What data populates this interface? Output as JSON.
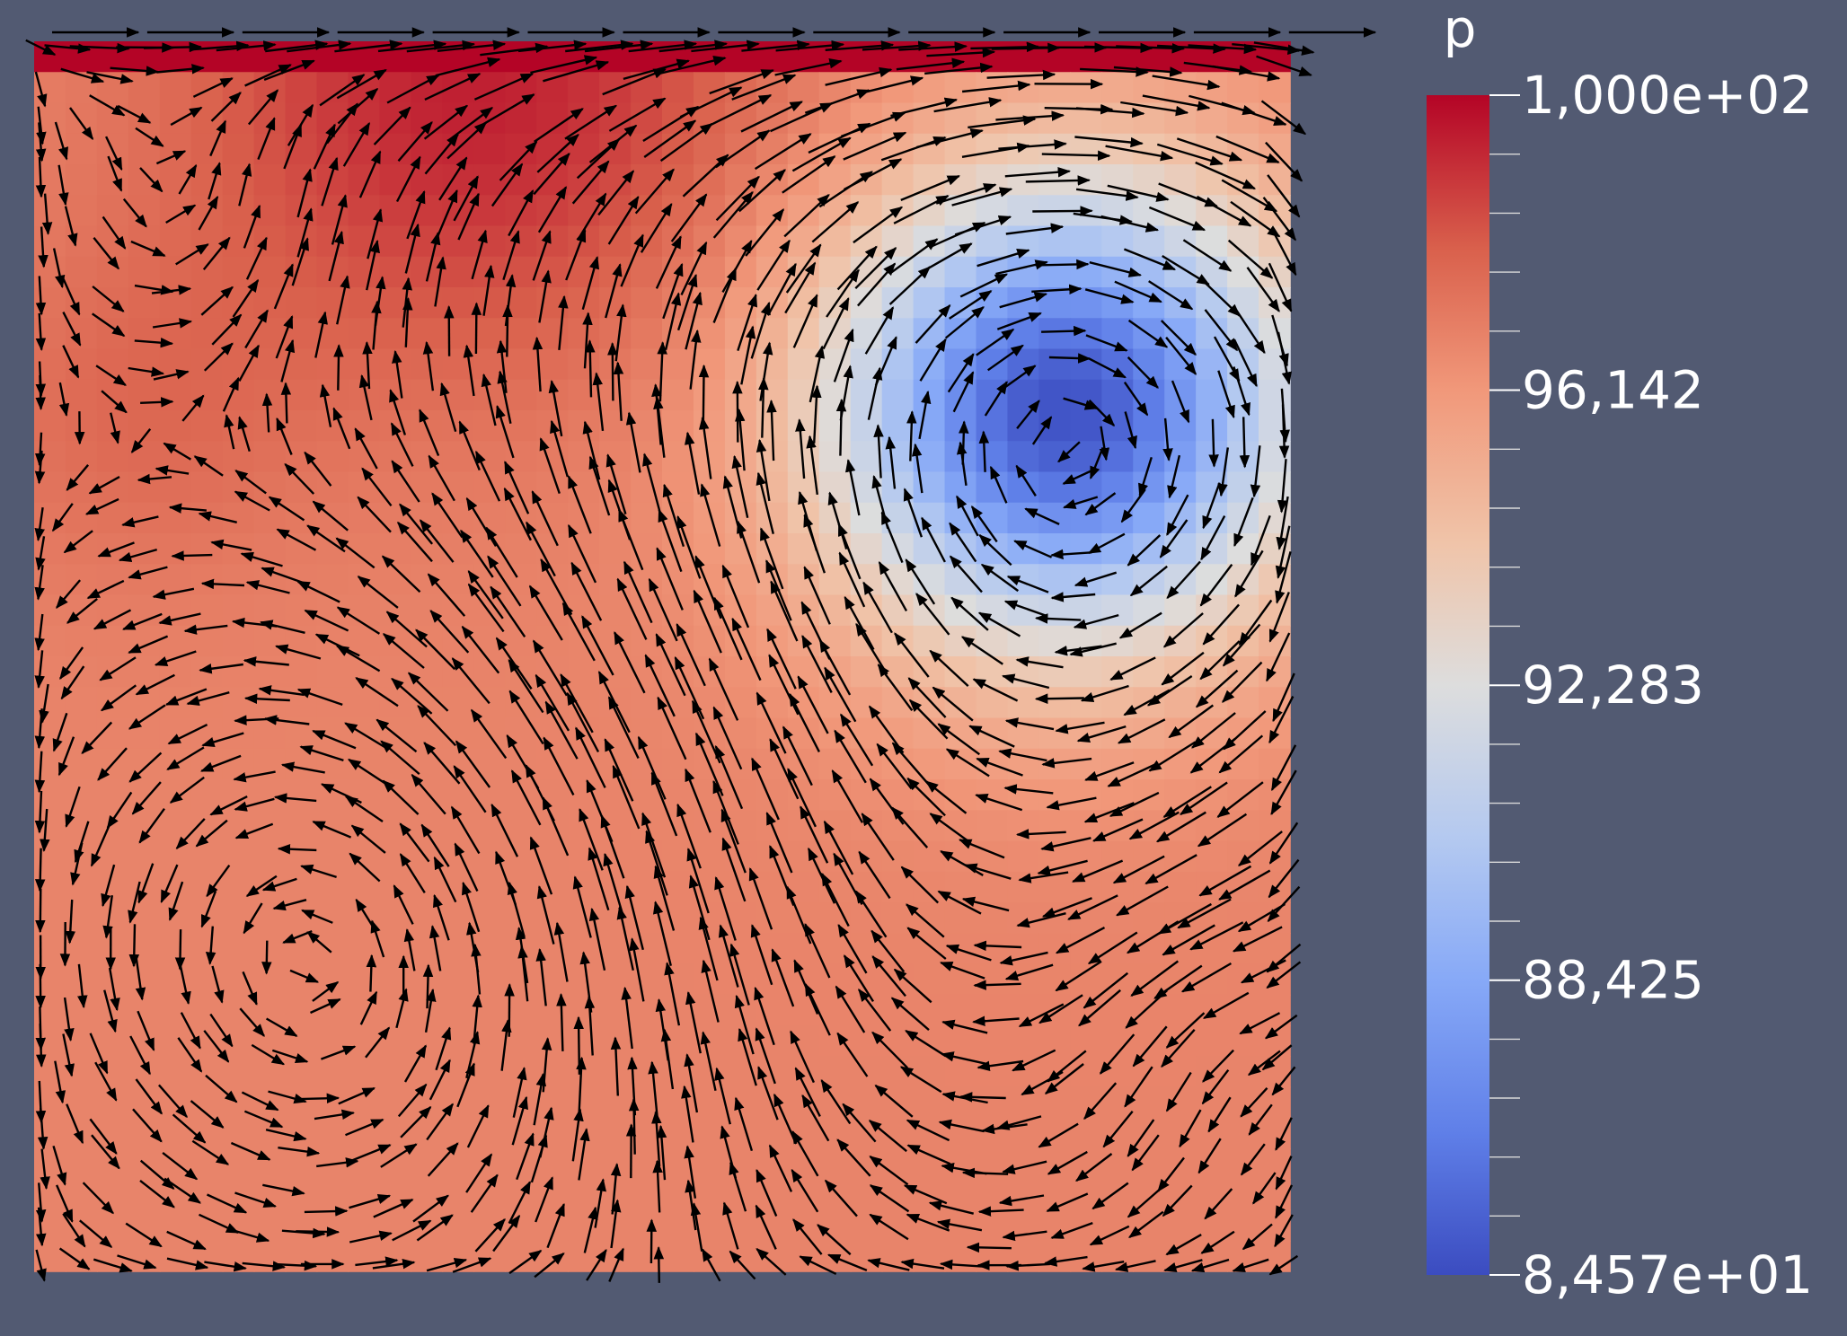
{
  "app": {
    "background": "#525a72"
  },
  "chart_data": {
    "type": "heatmap",
    "title": "",
    "colorbar": {
      "title": "p",
      "range": [
        84.57,
        100.0
      ],
      "tick_labels": [
        "1,000e+02",
        "96,142",
        "92,283",
        "88,425",
        "8,457e+01"
      ],
      "tick_values": [
        100.0,
        96.142,
        92.283,
        88.425,
        84.57
      ],
      "colormap": "Cool to Warm",
      "colors": {
        "low": "#3b4cc0",
        "mid": "#dddddd",
        "high": "#b40426"
      },
      "minor_ticks_per_interval": 5
    },
    "domain": {
      "x": [
        0,
        1
      ],
      "y": [
        0,
        1
      ],
      "grid": [
        40,
        40
      ]
    },
    "pressure_field": {
      "base": 96.8,
      "lid_row_value": 100.0,
      "features": [
        {
          "kind": "low",
          "x": 0.82,
          "y": 0.7,
          "amplitude": -12.0,
          "radius": 0.13
        },
        {
          "kind": "high",
          "x": 0.35,
          "y": 0.97,
          "amplitude": 2.6,
          "radius": 0.16
        },
        {
          "kind": "high",
          "x": 0.08,
          "y": 0.7,
          "amplitude": 0.8,
          "radius": 0.1
        }
      ]
    },
    "vector_field": {
      "type": "glyphs",
      "color": "#000000",
      "lid_velocity": 1.0,
      "vortices": [
        {
          "x": 0.82,
          "y": 0.68,
          "strength": 1.0,
          "radius": 0.28,
          "direction": "clockwise"
        },
        {
          "x": 0.12,
          "y": 0.86,
          "strength": 0.45,
          "radius": 0.1,
          "direction": "counterclockwise"
        },
        {
          "x": 0.27,
          "y": 0.27,
          "strength": 0.55,
          "radius": 0.24,
          "direction": "counterclockwise"
        },
        {
          "x": 0.7,
          "y": 0.2,
          "strength": 0.4,
          "radius": 0.2,
          "direction": "clockwise"
        },
        {
          "x": 0.93,
          "y": 0.2,
          "strength": 0.3,
          "radius": 0.08,
          "direction": "counterclockwise"
        }
      ]
    }
  }
}
